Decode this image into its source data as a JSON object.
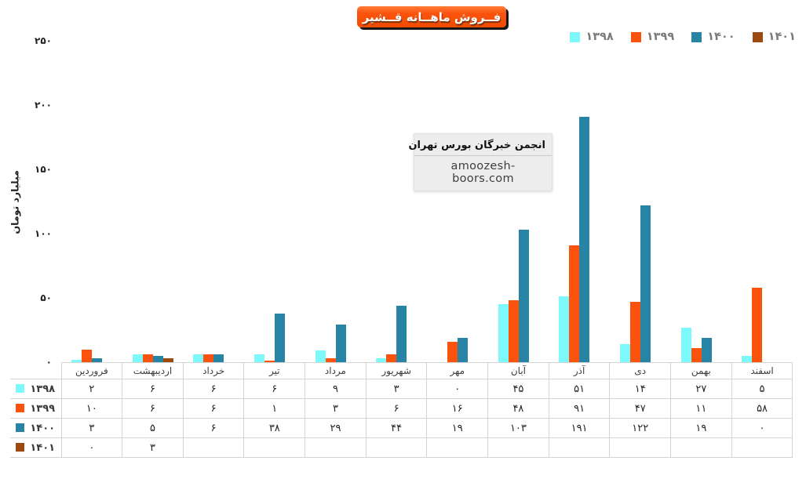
{
  "title": "فــروش ماهــانه قــشیر",
  "watermark": {
    "line1": "انجمن خبرگان بورس تهران",
    "line2": "amoozesh-boors.com"
  },
  "colors": {
    "badge_orange": "#fb530e",
    "badge_shadow": "#161616",
    "series_1398": "#7df8fb",
    "series_1399": "#fb530e",
    "series_1400": "#2884a4",
    "series_1401": "#9c4a10",
    "table_border": "#d4d4d4",
    "legend_text": "#7b7b7b",
    "watermark_bg": "#ededed"
  },
  "chart_data": {
    "type": "bar",
    "title": "فروش ماهانه قشیر",
    "xlabel": "",
    "ylabel": "میلیارد تومان",
    "ylim": [
      0,
      250
    ],
    "grid": false,
    "legend_position": "top-right",
    "yticks": [
      {
        "label": "۲۵۰",
        "value": 250
      },
      {
        "label": "۲۰۰",
        "value": 200
      },
      {
        "label": "۱۵۰",
        "value": 150
      },
      {
        "label": "۱۰۰",
        "value": 100
      },
      {
        "label": "۵۰",
        "value": 50
      },
      {
        "label": "۰",
        "value": 0
      }
    ],
    "categories": [
      "فروردین",
      "اردیبهشت",
      "خرداد",
      "تیر",
      "مرداد",
      "شهریور",
      "مهر",
      "آبان",
      "آذر",
      "دی",
      "بهمن",
      "اسفند"
    ],
    "series": [
      {
        "name": "۱۳۹۸",
        "color": "#7df8fb",
        "values": [
          2,
          6,
          6,
          6,
          9,
          3,
          0,
          45,
          51,
          14,
          27,
          5
        ],
        "display": [
          "۲",
          "۶",
          "۶",
          "۶",
          "۹",
          "۳",
          "۰",
          "۴۵",
          "۵۱",
          "۱۴",
          "۲۷",
          "۵"
        ]
      },
      {
        "name": "۱۳۹۹",
        "color": "#fb530e",
        "values": [
          10,
          6,
          6,
          1,
          3,
          6,
          16,
          48,
          91,
          47,
          11,
          58
        ],
        "display": [
          "۱۰",
          "۶",
          "۶",
          "۱",
          "۳",
          "۶",
          "۱۶",
          "۴۸",
          "۹۱",
          "۴۷",
          "۱۱",
          "۵۸"
        ]
      },
      {
        "name": "۱۴۰۰",
        "color": "#2884a4",
        "values": [
          3,
          5,
          6,
          38,
          29,
          44,
          19,
          103,
          191,
          122,
          19,
          0
        ],
        "display": [
          "۳",
          "۵",
          "۶",
          "۳۸",
          "۲۹",
          "۴۴",
          "۱۹",
          "۱۰۳",
          "۱۹۱",
          "۱۲۲",
          "۱۹",
          "۰"
        ]
      },
      {
        "name": "۱۴۰۱",
        "color": "#9c4a10",
        "values": [
          0,
          3,
          null,
          null,
          null,
          null,
          null,
          null,
          null,
          null,
          null,
          null
        ],
        "display": [
          "۰",
          "۳",
          "",
          "",
          "",
          "",
          "",
          "",
          "",
          "",
          "",
          ""
        ]
      }
    ]
  }
}
